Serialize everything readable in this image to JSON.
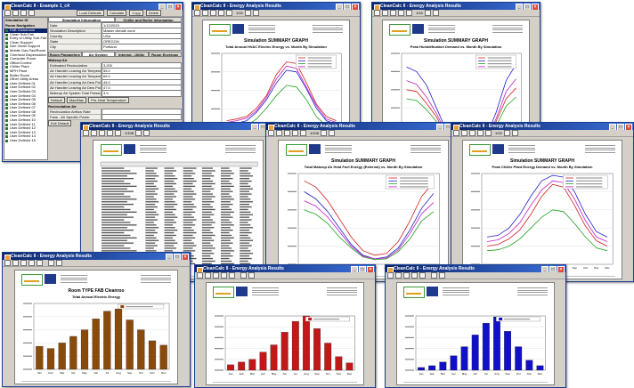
{
  "app": {
    "title": "CleanCalc II - Example 1_c4",
    "toolbar_buttons": [
      "Load Defaults",
      "Calculate",
      "Copy",
      "Delete"
    ],
    "simulation_label": "Simulation ID",
    "nav_header": "Room Navigation",
    "nav_items": [
      "FAB Cleanroom",
      "Clean Sub-Fab",
      "Entry or Utility Sub-Fab",
      "Clean Support",
      "Non Clean Support",
      "Mobile Gas Pad/Room",
      "Chemical Dispensation",
      "Computer Room",
      "Office/Control",
      "Chiller Plant",
      "MPH Plant",
      "Boiler Room",
      "Other Utility Areas",
      "User Defined 01",
      "User Defined 02",
      "User Defined 03",
      "User Defined 04",
      "User Defined 05",
      "User Defined 06",
      "User Defined 07",
      "User Defined 08",
      "User Defined 09",
      "User Defined 10",
      "User Defined 11",
      "User Defined 12",
      "User Defined 13",
      "User Defined 14",
      "User Defined 15"
    ],
    "tabs_top": [
      "Simulation Information",
      "Chiller and Boiler Information"
    ],
    "fields": [
      {
        "k": "Date",
        "v": "1/12/2015"
      },
      {
        "k": "Simulation Description",
        "v": "Master climate zone"
      },
      {
        "k": "Country",
        "v": "USA"
      },
      {
        "k": "State",
        "v": "OREGON"
      },
      {
        "k": "City",
        "v": "Portland"
      }
    ],
    "tabs_bottom": [
      "Room Parameters",
      "Air System",
      "Internal - Utility",
      "Room Envelope"
    ],
    "makeup_title": "Makeup Air",
    "makeup_rows": [
      {
        "k": "Estimated Recirculation",
        "v": "3,200"
      },
      {
        "k": "Air Handler Leaving Air Temperature - Cooling Mode",
        "v": "55.0"
      },
      {
        "k": "Air Handler Leaving Air Temperature - Heating Mode",
        "v": "65.0"
      },
      {
        "k": "Air Handler Leaving Air Dew Point - Cooling Mode",
        "v": "45.0"
      },
      {
        "k": "Air Handler Leaving Air Dew Point - Heating Mode",
        "v": "47.0"
      },
      {
        "k": "Makeup Air System Total Pressure",
        "v": "3.5"
      }
    ],
    "buttons": [
      "Default",
      "Max/Max",
      "Pre-Heat Temperature"
    ],
    "recirc_title": "Recirculation Air",
    "recirc_rows": [
      "Recirculation Airflow Rate",
      "Fans - Air Specific Power"
    ],
    "exit_label": "Exit Default"
  },
  "reports": [
    {
      "window_title": "CleanCalc II - Energy Analysis Results",
      "page": "1/15",
      "graph_title": "Simulation SUMMARY GRAPH",
      "chart_title": "Total Annual HVAC Electric Energy vs. Month By Simulation",
      "type": "line"
    },
    {
      "window_title": "CleanCalc II - Energy Analysis Results",
      "page": "1/15",
      "graph_title": "Simulation SUMMARY GRAPH",
      "chart_title": "Peak Humidification Demand vs. Month By Simulation",
      "type": "line"
    },
    {
      "window_title": "CleanCalc II - Energy Analysis Results",
      "page": "1/108",
      "graph_title": "",
      "chart_title": "",
      "type": "table"
    },
    {
      "window_title": "CleanCalc II - Energy Analysis Results",
      "page": "1/108",
      "graph_title": "Simulation SUMMARY GRAPH",
      "chart_title": "Total Makeup Air Heat Fuel Energy (External) vs. Month By Simulation",
      "type": "line"
    },
    {
      "window_title": "CleanCalc II - Energy Analysis Results",
      "page": "1/15",
      "graph_title": "Simulation SUMMARY GRAPH",
      "chart_title": "Peak Chiller Plant Energy Demand vs. Month By Simulation",
      "type": "line"
    },
    {
      "window_title": "CleanCalc II - Energy Analysis Results",
      "page": "",
      "graph_title": "Room TYPE FAB Cleanroo",
      "chart_title": "Total Annual Electric Energy",
      "type": "bar",
      "color": "#8a4a0a"
    },
    {
      "window_title": "CleanCalc II - Energy Analysis Results",
      "page": "",
      "graph_title": "",
      "chart_title": "",
      "type": "bar",
      "color": "#c41818"
    },
    {
      "window_title": "CleanCalc II - Energy Analysis Results",
      "page": "",
      "graph_title": "",
      "chart_title": "",
      "type": "bar",
      "color": "#1010c8"
    }
  ],
  "months": [
    "Jan",
    "Feb",
    "Mar",
    "Apr",
    "May",
    "Jun",
    "Jul",
    "Aug",
    "Sep",
    "Oct",
    "Nov",
    "Dec"
  ],
  "chart_data": [
    {
      "type": "line",
      "title": "Total Annual HVAC Electric Energy vs. Month By Simulation",
      "categories": [
        "Jan",
        "Feb",
        "Mar",
        "Apr",
        "May",
        "Jun",
        "Jul",
        "Aug",
        "Sep",
        "Oct",
        "Nov",
        "Dec"
      ],
      "series": [
        {
          "values": [
            30,
            32,
            35,
            45,
            60,
            85,
            100,
            98,
            75,
            50,
            35,
            30
          ],
          "color": "#d02020"
        },
        {
          "values": [
            25,
            27,
            30,
            40,
            55,
            75,
            90,
            88,
            68,
            45,
            30,
            26
          ],
          "color": "#2020c8"
        },
        {
          "values": [
            20,
            21,
            24,
            32,
            45,
            60,
            72,
            70,
            55,
            35,
            24,
            20
          ],
          "color": "#20a020"
        },
        {
          "values": [
            28,
            30,
            33,
            42,
            58,
            80,
            95,
            92,
            70,
            48,
            32,
            28
          ],
          "color": "#c020c0"
        }
      ],
      "ylim": [
        0,
        110
      ]
    },
    {
      "type": "line",
      "title": "Peak Humidification Demand vs. Month By Simulation",
      "categories": [
        "Jan",
        "Feb",
        "Mar",
        "Apr",
        "May",
        "Jun",
        "Jul",
        "Aug",
        "Sep",
        "Oct",
        "Nov",
        "Dec"
      ],
      "series": [
        {
          "values": [
            60,
            58,
            45,
            30,
            10,
            2,
            0,
            0,
            5,
            25,
            50,
            62
          ],
          "color": "#d02020"
        },
        {
          "values": [
            85,
            80,
            65,
            40,
            15,
            3,
            0,
            0,
            8,
            35,
            70,
            88
          ],
          "color": "#2020c8"
        },
        {
          "values": [
            50,
            48,
            38,
            25,
            8,
            1,
            0,
            0,
            4,
            20,
            42,
            52
          ],
          "color": "#20a020"
        },
        {
          "values": [
            70,
            66,
            52,
            34,
            12,
            2,
            0,
            0,
            6,
            28,
            58,
            72
          ],
          "color": "#c020c0"
        }
      ],
      "ylim": [
        0,
        100
      ]
    },
    {
      "type": "line",
      "title": "Total Makeup Air Heat Fuel Energy (External) vs. Month By Simulation",
      "categories": [
        "Jan",
        "Feb",
        "Mar",
        "Apr",
        "May",
        "Jun",
        "Jul",
        "Aug",
        "Sep",
        "Oct",
        "Nov",
        "Dec"
      ],
      "series": [
        {
          "values": [
            92,
            85,
            70,
            50,
            30,
            15,
            10,
            12,
            25,
            48,
            75,
            90
          ],
          "color": "#d02020"
        },
        {
          "values": [
            80,
            72,
            58,
            40,
            22,
            10,
            6,
            8,
            18,
            38,
            62,
            78
          ],
          "color": "#2020c8"
        },
        {
          "values": [
            60,
            55,
            45,
            30,
            18,
            8,
            5,
            6,
            14,
            28,
            48,
            58
          ],
          "color": "#20a020"
        },
        {
          "values": [
            70,
            64,
            52,
            36,
            20,
            9,
            6,
            7,
            16,
            34,
            56,
            68
          ],
          "color": "#c020c0"
        }
      ],
      "ylim": [
        0,
        100
      ]
    },
    {
      "type": "line",
      "title": "Peak Chiller Plant Energy Demand vs. Month By Simulation",
      "categories": [
        "Jan",
        "Feb",
        "Mar",
        "Apr",
        "May",
        "Jun",
        "Jul",
        "Aug",
        "Sep",
        "Oct",
        "Nov",
        "Dec"
      ],
      "series": [
        {
          "values": [
            20,
            22,
            28,
            38,
            55,
            75,
            88,
            85,
            65,
            42,
            26,
            20
          ],
          "color": "#d02020"
        },
        {
          "values": [
            30,
            32,
            40,
            55,
            75,
            92,
            98,
            96,
            80,
            55,
            36,
            30
          ],
          "color": "#2020c8"
        },
        {
          "values": [
            15,
            16,
            20,
            28,
            40,
            52,
            60,
            58,
            45,
            30,
            18,
            15
          ],
          "color": "#20a020"
        },
        {
          "values": [
            25,
            27,
            34,
            46,
            65,
            82,
            92,
            90,
            72,
            48,
            30,
            25
          ],
          "color": "#c020c0"
        }
      ],
      "ylim": [
        0,
        100
      ]
    },
    {
      "type": "bar",
      "title": "Total Annual Electric Energy",
      "categories": [
        "Jan",
        "Feb",
        "Mar",
        "Apr",
        "May",
        "Jun",
        "Jul",
        "Aug",
        "Sep",
        "Oct",
        "Nov",
        "Dec"
      ],
      "values": [
        2.1,
        1.9,
        2.4,
        3.0,
        3.6,
        4.6,
        5.3,
        5.5,
        4.5,
        3.6,
        2.6,
        2.2
      ],
      "color": "#8a4a0a",
      "ylim": [
        0,
        6
      ]
    },
    {
      "type": "bar",
      "title": "",
      "categories": [
        "Jan",
        "Feb",
        "Mar",
        "Apr",
        "May",
        "Jun",
        "Jul",
        "Aug",
        "Sep",
        "Oct",
        "Nov",
        "Dec"
      ],
      "values": [
        0.6,
        0.9,
        1.2,
        2.0,
        2.8,
        4.2,
        5.4,
        6.0,
        4.6,
        3.0,
        1.5,
        0.8
      ],
      "color": "#c41818",
      "ylim": [
        0,
        6
      ]
    },
    {
      "type": "bar",
      "title": "",
      "categories": [
        "Jan",
        "Feb",
        "Mar",
        "Apr",
        "May",
        "Jun",
        "Jul",
        "Aug",
        "Sep",
        "Oct",
        "Nov",
        "Dec"
      ],
      "values": [
        0.3,
        0.5,
        0.9,
        1.6,
        2.6,
        3.9,
        5.2,
        5.9,
        4.3,
        2.6,
        1.1,
        0.5
      ],
      "color": "#1010c8",
      "ylim": [
        0,
        6
      ]
    }
  ]
}
